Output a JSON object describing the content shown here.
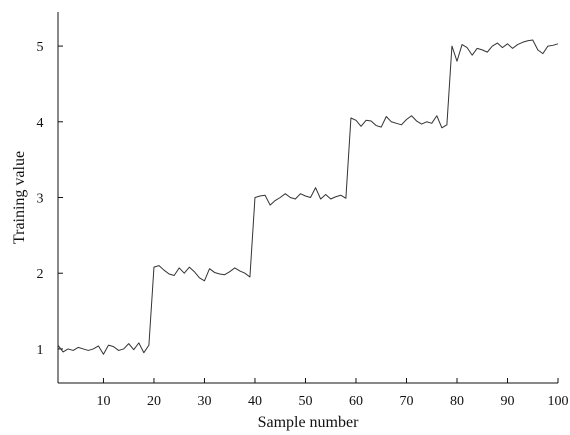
{
  "chart_data": {
    "type": "line",
    "title": "",
    "xlabel": "Sample number",
    "ylabel": "Training value",
    "xlim": [
      1,
      100
    ],
    "ylim": [
      0.55,
      5.45
    ],
    "grid": false,
    "x_ticks": [
      10,
      20,
      30,
      40,
      50,
      60,
      70,
      80,
      90,
      100
    ],
    "y_ticks": [
      1,
      2,
      3,
      4,
      5
    ],
    "line_color": "#333333",
    "series": [
      {
        "x": [
          1,
          2,
          3,
          4,
          5,
          6,
          7,
          8,
          9,
          10,
          11,
          12,
          13,
          14,
          15,
          16,
          17,
          18,
          19,
          20,
          21,
          22,
          23,
          24,
          25,
          26,
          27,
          28,
          29,
          30,
          31,
          32,
          33,
          34,
          35,
          36,
          37,
          38,
          39,
          40,
          41,
          42,
          43,
          44,
          45,
          46,
          47,
          48,
          49,
          50,
          51,
          52,
          53,
          54,
          55,
          56,
          57,
          58,
          59,
          60,
          61,
          62,
          63,
          64,
          65,
          66,
          67,
          68,
          69,
          70,
          71,
          72,
          73,
          74,
          75,
          76,
          77,
          78,
          79,
          80,
          81,
          82,
          83,
          84,
          85,
          86,
          87,
          88,
          89,
          90,
          91,
          92,
          93,
          94,
          95,
          96,
          97,
          98,
          99,
          100
        ],
        "values": [
          1.05,
          0.96,
          1.0,
          0.98,
          1.02,
          1.0,
          0.98,
          1.0,
          1.04,
          0.93,
          1.05,
          1.03,
          0.98,
          1.0,
          1.07,
          0.99,
          1.08,
          0.95,
          1.05,
          2.08,
          2.1,
          2.04,
          1.99,
          1.97,
          2.07,
          2.0,
          2.08,
          2.02,
          1.94,
          1.9,
          2.06,
          2.01,
          1.99,
          1.98,
          2.02,
          2.07,
          2.03,
          2.0,
          1.95,
          3.0,
          3.02,
          3.03,
          2.9,
          2.96,
          3.0,
          3.05,
          3.0,
          2.98,
          3.05,
          3.02,
          3.0,
          3.13,
          2.98,
          3.04,
          2.98,
          3.01,
          3.03,
          2.99,
          4.05,
          4.02,
          3.94,
          4.02,
          4.01,
          3.95,
          3.93,
          4.07,
          4.0,
          3.98,
          3.96,
          4.03,
          4.08,
          4.01,
          3.97,
          4.0,
          3.98,
          4.08,
          3.92,
          3.96,
          5.0,
          4.8,
          5.02,
          4.98,
          4.88,
          4.97,
          4.95,
          4.92,
          5.0,
          5.04,
          4.98,
          5.03,
          4.97,
          5.02,
          5.05,
          5.07,
          5.08,
          4.95,
          4.9,
          5.0,
          5.01,
          5.03
        ]
      }
    ]
  }
}
